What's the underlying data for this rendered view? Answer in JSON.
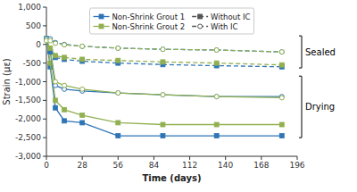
{
  "chart_data": {
    "type": "line",
    "xlabel": "Time (days)",
    "ylabel": "Strain (με)",
    "xlim": [
      0,
      196
    ],
    "ylim": [
      -3000,
      1000
    ],
    "xticks": [
      0,
      28,
      56,
      84,
      112,
      140,
      168,
      196
    ],
    "yticks": [
      {
        "value": -3000,
        "label": "-3,000"
      },
      {
        "value": -2500,
        "label": "-2,500"
      },
      {
        "value": -2000,
        "label": "-2,000"
      },
      {
        "value": -1500,
        "label": "-1,500"
      },
      {
        "value": -1000,
        "label": "-1,000"
      },
      -500,
      0,
      500,
      {
        "value": 1000,
        "label": "1,000"
      }
    ],
    "x": [
      0,
      3,
      7,
      14,
      28,
      56,
      91,
      133,
      184
    ],
    "series": [
      {
        "color": "#2E75B6",
        "marker": "square",
        "line_style": "solid",
        "values": [
          150,
          -600,
          -1700,
          -2050,
          -2100,
          -2450,
          -2450,
          -2450,
          -2450
        ]
      },
      {
        "color": "#92B050",
        "marker": "square",
        "line_style": "solid",
        "values": [
          150,
          -500,
          -1500,
          -1750,
          -1900,
          -2100,
          -2150,
          -2150,
          -2150
        ]
      },
      {
        "color": "#2E75B6",
        "marker": "hollow-circle",
        "line_style": "solid",
        "values": [
          150,
          -200,
          -1100,
          -1200,
          -1250,
          -1300,
          -1350,
          -1400,
          -1400
        ]
      },
      {
        "color": "#92B050",
        "marker": "hollow-circle",
        "line_style": "solid",
        "values": [
          150,
          -150,
          -1000,
          -1100,
          -1200,
          -1300,
          -1350,
          -1400,
          -1430
        ]
      },
      {
        "color": "#2E75B6",
        "marker": "square",
        "line_style": "dashed",
        "values": [
          150,
          -200,
          -350,
          -400,
          -450,
          -500,
          -540,
          -570,
          -600
        ]
      },
      {
        "color": "#92B050",
        "marker": "square",
        "line_style": "dashed",
        "values": [
          150,
          -100,
          -300,
          -350,
          -400,
          -430,
          -470,
          -500,
          -550
        ]
      },
      {
        "color": "#2E75B6",
        "marker": "hollow-circle",
        "line_style": "dashed",
        "values": [
          150,
          150,
          50,
          0,
          -50,
          -100,
          -130,
          -150,
          -200
        ]
      },
      {
        "color": "#92B050",
        "marker": "hollow-circle",
        "line_style": "dashed",
        "values": [
          100,
          100,
          30,
          -10,
          -50,
          -100,
          -130,
          -150,
          -200
        ]
      }
    ],
    "legend": "upper center",
    "legend_entries": [
      {
        "name": "Non-Shrink Grout 1",
        "color": "#2E75B6",
        "marker": "square",
        "line_style": "solid"
      },
      {
        "name": "Non-Shrink Grout 2",
        "color": "#92B050",
        "marker": "square",
        "line_style": "solid"
      },
      {
        "name": "Without IC",
        "color": "#555555",
        "marker": "square",
        "line_style": "dashed"
      },
      {
        "name": "With IC",
        "color": "#555555",
        "marker": "hollow-circle",
        "line_style": "dashed"
      }
    ],
    "annotations": [
      {
        "text": "Sealed",
        "y": [
          -630,
          230
        ]
      },
      {
        "text": "Drying",
        "y": [
          -2500,
          -850
        ]
      }
    ]
  }
}
